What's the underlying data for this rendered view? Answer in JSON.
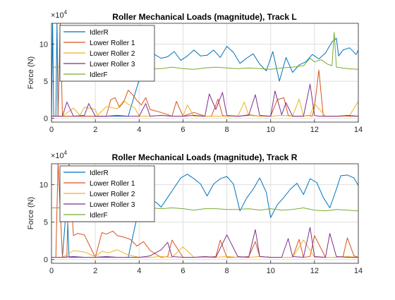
{
  "chart_data": [
    {
      "type": "line",
      "title": "Roller Mechanical Loads (magnitude), Track L",
      "ylabel": "Force (N)",
      "y_multiplier_label": "×10",
      "y_multiplier_exponent": "4",
      "xlim": [
        0,
        14
      ],
      "ylim": [
        -0.5,
        12.8
      ],
      "y_scale": 10000,
      "grid": true,
      "legend_placement": "top-left",
      "x_ticks": [
        "0",
        "2",
        "4",
        "6",
        "8",
        "10",
        "12",
        "14"
      ],
      "y_ticks": [
        "0",
        "5",
        "10"
      ],
      "series": [
        {
          "name": "IdlerR",
          "color": "#0072BD",
          "x": [
            0,
            0.05,
            0.1,
            0.2,
            0.25,
            0.3,
            0.4,
            0.45,
            0.5,
            1,
            2,
            2.5,
            3,
            3.5,
            4,
            4.5,
            4.7,
            5,
            5.3,
            5.6,
            5.9,
            6.2,
            6.5,
            6.8,
            7.1,
            7.4,
            7.7,
            8,
            8.3,
            8.6,
            8.9,
            9.2,
            9.5,
            9.8,
            10.1,
            10.4,
            10.7,
            11,
            11.3,
            11.6,
            11.9,
            12.2,
            12.5,
            12.8,
            13,
            13.1,
            13.3,
            13.6,
            13.9,
            14
          ],
          "y": [
            0,
            13,
            0.3,
            0.3,
            13,
            0.3,
            0.3,
            0.3,
            0.3,
            0.3,
            0.3,
            0.3,
            0.3,
            0.3,
            5.2,
            7.4,
            8.6,
            8.1,
            8.3,
            9.0,
            7.8,
            8.4,
            9.2,
            8.4,
            8.5,
            9.2,
            8.2,
            9.7,
            8.9,
            7.4,
            8.1,
            8.7,
            7.3,
            6.4,
            9.0,
            5.0,
            8.2,
            6.2,
            7.2,
            7.6,
            8.6,
            8.0,
            8.8,
            10.3,
            10.8,
            8.4,
            9.2,
            9.5,
            8.6,
            9.2
          ]
        },
        {
          "name": "Lower Roller 1",
          "color": "#D95319",
          "x": [
            0,
            0.3,
            0.4,
            0.5,
            1,
            1.5,
            2,
            2.5,
            2.7,
            2.9,
            3.1,
            3.3,
            3.5,
            3.7,
            3.9,
            4.1,
            4.3,
            4.5,
            5,
            5.5,
            5.7,
            6,
            6.5,
            7,
            7.3,
            7.6,
            7.8,
            8,
            8.3,
            8.6,
            9,
            9.5,
            10,
            10.3,
            10.6,
            10.8,
            11,
            11.5,
            11.7,
            11.9,
            12,
            12.2,
            12.4,
            12.6,
            13,
            13.5,
            14
          ],
          "y": [
            0.3,
            0.3,
            13,
            0.3,
            0.3,
            0.3,
            0.3,
            0.3,
            2.5,
            2.8,
            1.5,
            2.2,
            3.8,
            3.2,
            2.4,
            1.8,
            2.8,
            1.2,
            0.8,
            0.3,
            2.3,
            0.3,
            0.8,
            0.3,
            0.3,
            2.6,
            0.4,
            0.3,
            0.3,
            0.3,
            0.5,
            0.3,
            0.3,
            2.5,
            2.8,
            0.4,
            0.3,
            0.3,
            0.4,
            0.3,
            1.6,
            6.5,
            0.3,
            0.3,
            0.3,
            0.3,
            0.3
          ]
        },
        {
          "name": "Lower Roller 2",
          "color": "#EDB120",
          "x": [
            0,
            0.5,
            1,
            1.3,
            1.5,
            2,
            2.1,
            2.5,
            3,
            3.3,
            3.5,
            3.8,
            4,
            4.5,
            5,
            5.5,
            6,
            6.2,
            6.5,
            7,
            7.5,
            8,
            8.5,
            8.8,
            9,
            9.5,
            10,
            10.5,
            11,
            11.3,
            11.5,
            11.8,
            12,
            12.5,
            13,
            13.3,
            13.6,
            14
          ],
          "y": [
            0.3,
            0.3,
            1.4,
            0.4,
            1.5,
            1.2,
            0.4,
            1.6,
            1.3,
            2.4,
            1.9,
            1.4,
            0.3,
            0.3,
            0.4,
            0.3,
            0.3,
            1.8,
            0.3,
            0.3,
            0.3,
            0.3,
            0.3,
            2.2,
            0.4,
            0.3,
            0.3,
            0.4,
            0.3,
            2.6,
            0.3,
            0.4,
            2.0,
            0.3,
            0.3,
            0.3,
            0.4,
            2.3
          ]
        },
        {
          "name": "Lower Roller 3",
          "color": "#7E2F8E",
          "x": [
            0,
            0.5,
            0.7,
            1,
            1.5,
            1.7,
            2,
            2.5,
            3,
            3.5,
            4,
            4.3,
            4.5,
            5,
            5.5,
            6,
            6.5,
            7,
            7.2,
            7.5,
            7.8,
            8,
            8.5,
            9,
            9.3,
            9.5,
            10,
            10.2,
            10.5,
            10.7,
            11,
            11.5,
            11.8,
            12,
            12.2,
            12.5,
            13,
            13.5,
            14
          ],
          "y": [
            0.3,
            0.3,
            2.2,
            0.3,
            0.4,
            2.0,
            0.3,
            0.3,
            0.4,
            0.3,
            0.3,
            2.0,
            0.3,
            0.4,
            0.3,
            0.3,
            0.4,
            0.3,
            3.3,
            1.2,
            3.5,
            0.4,
            0.3,
            0.4,
            3.2,
            0.4,
            0.3,
            3.7,
            0.5,
            2.1,
            0.3,
            0.3,
            4.6,
            0.4,
            0.3,
            0.3,
            0.3,
            0.4,
            0.3
          ]
        },
        {
          "name": "IdlerF",
          "color": "#77AC30",
          "x": [
            0,
            2,
            2.5,
            3,
            3.5,
            4,
            4.5,
            5,
            5.5,
            6,
            6.5,
            7,
            7.5,
            8,
            8.5,
            9,
            9.5,
            10,
            10.5,
            11,
            11.5,
            11.8,
            12,
            12.3,
            12.6,
            12.8,
            12.9,
            13,
            13.5,
            14
          ],
          "y": [
            6.9,
            6.9,
            6.9,
            6.9,
            6.9,
            6.9,
            6.7,
            6.7,
            6.9,
            6.7,
            6.6,
            6.8,
            6.9,
            6.8,
            6.7,
            6.8,
            6.7,
            6.6,
            6.8,
            6.9,
            7.1,
            8.1,
            7.6,
            7.9,
            7.3,
            7.1,
            11.6,
            6.9,
            6.7,
            6.6
          ]
        }
      ]
    },
    {
      "type": "line",
      "title": "Roller Mechanical Loads (magnitude), Track R",
      "ylabel": "Force (N)",
      "y_multiplier_label": "×10",
      "y_multiplier_exponent": "4",
      "xlim": [
        0,
        14
      ],
      "ylim": [
        -0.5,
        12.8
      ],
      "y_scale": 10000,
      "grid": true,
      "legend_placement": "top-left",
      "x_ticks": [
        "0",
        "2",
        "4",
        "6",
        "8",
        "10",
        "12",
        "14"
      ],
      "y_ticks": [
        "0",
        "5",
        "10"
      ],
      "series": [
        {
          "name": "IdlerR",
          "color": "#0072BD",
          "x": [
            0,
            0.5,
            0.7,
            0.8,
            1,
            2,
            2.5,
            3,
            3.5,
            4,
            4.3,
            4.5,
            4.8,
            5,
            5.3,
            5.6,
            5.9,
            6.2,
            6.5,
            6.8,
            7.1,
            7.4,
            7.7,
            8,
            8.3,
            8.6,
            8.9,
            9.2,
            9.5,
            9.8,
            10,
            10.3,
            10.6,
            10.9,
            11.2,
            11.5,
            11.8,
            12.1,
            12.4,
            12.7,
            13,
            13.2,
            13.5,
            13.8,
            14
          ],
          "y": [
            0.3,
            0.3,
            8.0,
            0.3,
            0.3,
            0.3,
            0.3,
            0.3,
            0.3,
            7.0,
            8.0,
            8.0,
            7.6,
            7.0,
            8.3,
            9.6,
            10.9,
            11.4,
            10.8,
            10.1,
            8.5,
            10.1,
            10.8,
            11.1,
            10.1,
            6.5,
            8.2,
            9.4,
            10.9,
            9.0,
            5.6,
            7.3,
            8.3,
            9.4,
            10.2,
            8.7,
            10.8,
            10.3,
            8.3,
            6.9,
            9.4,
            11.2,
            11.3,
            10.9,
            9.9
          ]
        },
        {
          "name": "Lower Roller 1",
          "color": "#D95319",
          "x": [
            0,
            0.2,
            0.3,
            0.5,
            0.7,
            0.8,
            1,
            1.2,
            1.5,
            2,
            2.3,
            2.5,
            2.8,
            3,
            3.3,
            3.6,
            3.9,
            4.2,
            4.5,
            5,
            5.3,
            5.5,
            6,
            6.5,
            7,
            7.5,
            7.7,
            8,
            8.5,
            9,
            9.3,
            9.5,
            10,
            10.5,
            11,
            11.3,
            11.5,
            11.8,
            12,
            12.5,
            13,
            13.3,
            13.5,
            13.8,
            14
          ],
          "y": [
            0.3,
            0.3,
            13,
            0.3,
            0.3,
            13,
            3.2,
            3.5,
            3.3,
            0.3,
            3.6,
            3.4,
            3.8,
            3.2,
            3.0,
            2.7,
            1.8,
            2.4,
            1.2,
            0.3,
            0.4,
            2.6,
            0.3,
            0.3,
            0.3,
            0.4,
            2.6,
            0.3,
            0.3,
            0.4,
            2.4,
            0.4,
            0.3,
            0.3,
            0.3,
            2.7,
            0.3,
            0.4,
            3.2,
            0.3,
            0.3,
            0.4,
            2.9,
            0.5,
            0.3
          ]
        },
        {
          "name": "Lower Roller 2",
          "color": "#EDB120",
          "x": [
            0,
            0.5,
            1,
            1.5,
            2,
            2.3,
            2.6,
            3,
            3.5,
            4,
            4.5,
            5,
            5.5,
            6,
            6.5,
            7,
            7.5,
            8,
            8.5,
            9,
            9.5,
            10,
            10.5,
            11,
            11.5,
            12,
            12.5,
            13,
            13.5,
            14
          ],
          "y": [
            0.3,
            0.3,
            1.2,
            1.0,
            0.4,
            1.1,
            0.9,
            1.3,
            0.6,
            0.3,
            0.3,
            0.4,
            0.3,
            1.7,
            0.3,
            0.3,
            0.3,
            0.4,
            0.3,
            0.3,
            0.4,
            0.3,
            0.3,
            0.3,
            2.6,
            0.3,
            0.3,
            0.3,
            0.4,
            0.3
          ]
        },
        {
          "name": "Lower Roller 3",
          "color": "#7E2F8E",
          "x": [
            0,
            0.5,
            1,
            1.5,
            2,
            2.5,
            3,
            3.5,
            4,
            4.3,
            4.5,
            5,
            5.3,
            5.5,
            6,
            6.5,
            7,
            7.5,
            8,
            8.5,
            9,
            9.3,
            9.5,
            10,
            10.5,
            10.8,
            11,
            11.5,
            11.8,
            12,
            12.5,
            12.7,
            13,
            13.5,
            14
          ],
          "y": [
            0.3,
            0.3,
            0.4,
            0.3,
            0.3,
            0.4,
            0.3,
            0.3,
            0.3,
            0.4,
            0.5,
            1.3,
            2.3,
            0.4,
            0.3,
            0.3,
            0.4,
            0.3,
            3.3,
            0.4,
            0.3,
            4.0,
            0.4,
            0.3,
            0.3,
            2.8,
            0.4,
            0.3,
            4.3,
            0.4,
            0.3,
            3.5,
            0.4,
            0.3,
            0.3
          ]
        },
        {
          "name": "IdlerF",
          "color": "#77AC30",
          "x": [
            0,
            1,
            2,
            2.5,
            3,
            3.5,
            4,
            4.5,
            5,
            5.5,
            6,
            6.5,
            7,
            7.5,
            8,
            8.5,
            9,
            9.5,
            10,
            10.5,
            11,
            11.5,
            12,
            12.5,
            13,
            13.5,
            14
          ],
          "y": [
            6.9,
            6.9,
            6.9,
            6.9,
            6.9,
            6.9,
            6.8,
            6.9,
            6.8,
            6.9,
            6.8,
            6.6,
            6.8,
            6.8,
            6.7,
            6.7,
            6.8,
            6.6,
            6.8,
            6.6,
            6.7,
            6.9,
            6.6,
            6.5,
            6.7,
            6.6,
            6.5
          ]
        }
      ]
    }
  ]
}
